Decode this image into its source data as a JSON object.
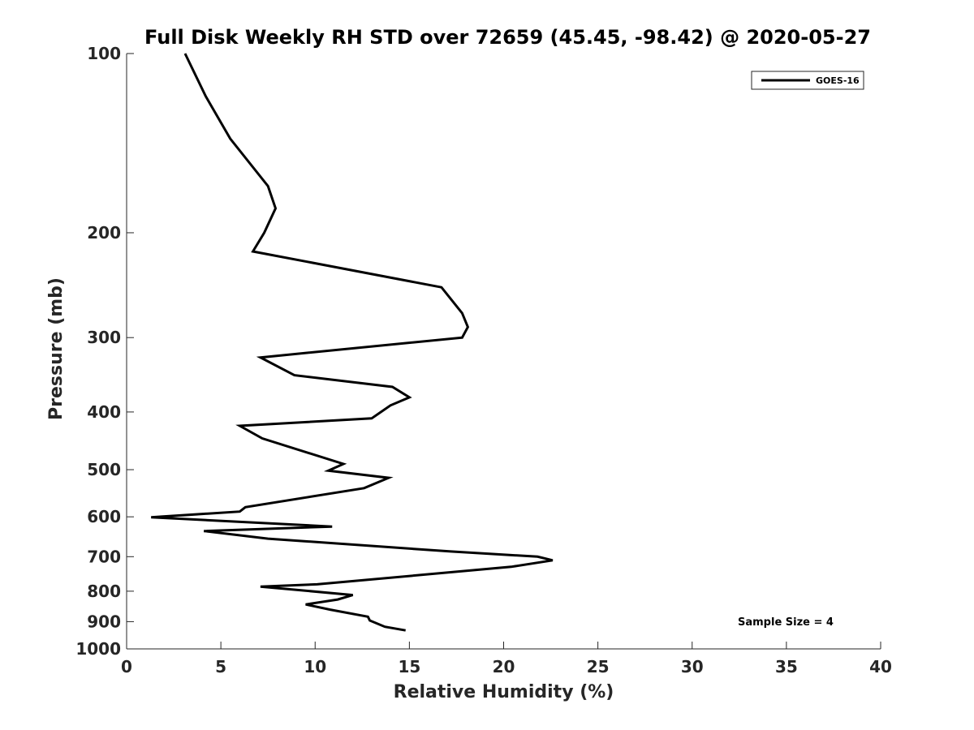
{
  "chart_data": {
    "type": "line",
    "title": "Full Disk Weekly RH STD over 72659 (45.45, -98.42) @ 2020-05-27",
    "xlabel": "Relative Humidity (%)",
    "ylabel": "Pressure (mb)",
    "xlim": [
      0,
      40
    ],
    "ylim": [
      100,
      1000
    ],
    "yscale": "log",
    "yreversed": true,
    "xticks": [
      0,
      5,
      10,
      15,
      20,
      25,
      30,
      35,
      40
    ],
    "yticks": [
      100,
      200,
      300,
      400,
      500,
      600,
      700,
      800,
      900,
      1000
    ],
    "grid": false,
    "legend_position": "top-right",
    "annotation": "Sample Size = 4",
    "series": [
      {
        "name": "GOES-16",
        "color": "#000000",
        "x": [
          3.1,
          4.2,
          5.5,
          7.5,
          7.9,
          7.3,
          6.7,
          16.7,
          17.8,
          18.1,
          17.8,
          7.1,
          8.9,
          14.1,
          15.0,
          14.0,
          13.0,
          6.0,
          7.2,
          11.5,
          10.7,
          13.9,
          12.6,
          6.3,
          6.0,
          1.3,
          10.9,
          4.1,
          7.5,
          17.2,
          21.8,
          22.6,
          20.4,
          10.1,
          7.1,
          12.0,
          11.2,
          9.5,
          10.8,
          12.8,
          12.9,
          13.7,
          14.8
        ],
        "y": [
          100,
          118,
          139,
          167,
          182,
          200,
          215,
          247,
          273,
          288,
          300,
          324,
          347,
          363,
          378,
          390,
          410,
          422,
          443,
          489,
          502,
          516,
          537,
          578,
          588,
          601,
          623,
          634,
          653,
          686,
          700,
          710,
          728,
          779,
          786,
          812,
          826,
          842,
          859,
          883,
          896,
          918,
          931
        ]
      }
    ]
  }
}
